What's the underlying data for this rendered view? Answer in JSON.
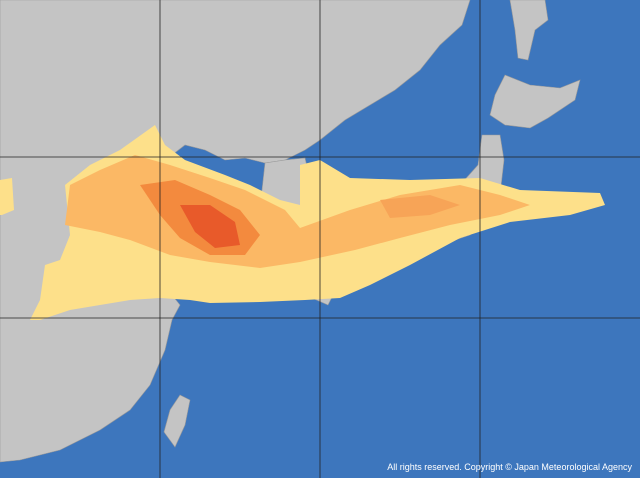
{
  "copyright": "All rights reserved. Copyright © Japan Meteorological Agency"
}
